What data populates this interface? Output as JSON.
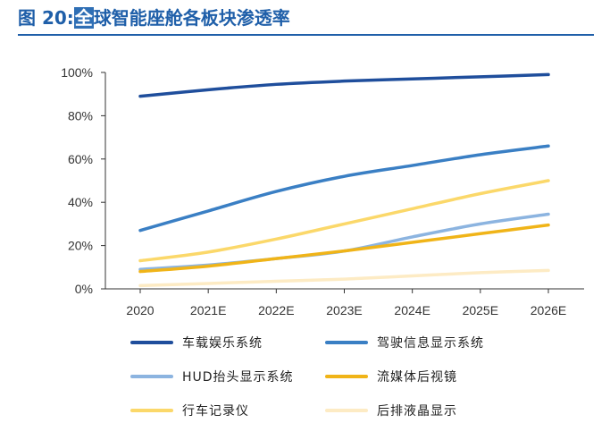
{
  "header": {
    "prefix": "图 20:",
    "highlight": "全",
    "rest": "球智能座舱各板块渗透率"
  },
  "chart_data": {
    "type": "line",
    "title": "",
    "xlabel": "",
    "ylabel": "",
    "categories": [
      "2020",
      "2021E",
      "2022E",
      "2023E",
      "2024E",
      "2025E",
      "2026E"
    ],
    "ylim": [
      0,
      100
    ],
    "yticks": [
      "0%",
      "20%",
      "40%",
      "60%",
      "80%",
      "100%"
    ],
    "grid": false,
    "legend_position": "bottom",
    "series": [
      {
        "name": "车载娱乐系统",
        "color": "#1f4e9c",
        "values": [
          89,
          92,
          94.5,
          96,
          97,
          98,
          99
        ]
      },
      {
        "name": "驾驶信息显示系统",
        "color": "#3a7fc4",
        "values": [
          27,
          36,
          45,
          52,
          57,
          62,
          66
        ]
      },
      {
        "name": "HUD抬头显示系统",
        "color": "#8cb4e0",
        "values": [
          9,
          11,
          14,
          17.5,
          24,
          30,
          34.5
        ]
      },
      {
        "name": "流媒体后视镜",
        "color": "#f0b418",
        "values": [
          8,
          10.5,
          14,
          17.5,
          21.5,
          25.5,
          29.5
        ]
      },
      {
        "name": "行车记录仪",
        "color": "#fbd86a",
        "values": [
          13,
          17,
          23,
          30,
          37,
          44,
          50
        ]
      },
      {
        "name": "后排液晶显示",
        "color": "#fdebc4",
        "values": [
          1.5,
          2.5,
          3.5,
          4.5,
          6,
          7.5,
          8.5
        ]
      }
    ]
  }
}
